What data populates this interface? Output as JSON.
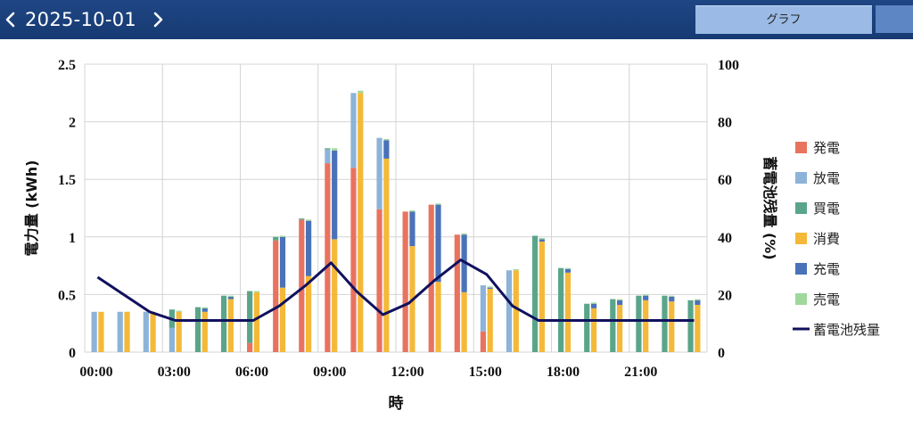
{
  "header": {
    "date": "2025-10-01",
    "tabs": [
      {
        "label": "グラフ",
        "active": true
      },
      {
        "label": "",
        "active": false
      }
    ]
  },
  "chart_data": {
    "type": "bar",
    "stacked_groups": true,
    "xlabel": "時",
    "ylabel_left": "電力量 (kWh)",
    "ylabel_right": "蓄電池残量 (%)",
    "ylim_left": [
      0,
      2.5
    ],
    "ylim_right": [
      0,
      100
    ],
    "y_ticks_left": [
      "0",
      "0.5",
      "1",
      "1.5",
      "2",
      "2.5"
    ],
    "y_ticks_right": [
      "0",
      "20",
      "40",
      "60",
      "80",
      "100"
    ],
    "x_ticks": [
      "00:00",
      "03:00",
      "06:00",
      "09:00",
      "12:00",
      "15:00",
      "18:00",
      "21:00"
    ],
    "hours": [
      0,
      1,
      2,
      3,
      4,
      5,
      6,
      7,
      8,
      9,
      10,
      11,
      12,
      13,
      14,
      15,
      16,
      17,
      18,
      19,
      20,
      21,
      22,
      23
    ],
    "grid": true,
    "legend_position": "right",
    "colors": {
      "発電": "#e8735f",
      "放電": "#8db3d8",
      "買電": "#5aa58a",
      "消費": "#f4b938",
      "充電": "#4a72b8",
      "売電": "#9fd89a",
      "蓄電池残量": "#10115e"
    },
    "series": [
      {
        "name": "発電",
        "values": [
          0,
          0,
          0,
          0,
          0,
          0,
          0.08,
          0.97,
          1.15,
          1.64,
          1.6,
          1.24,
          1.22,
          1.28,
          1.02,
          0.18,
          0,
          0,
          0,
          0,
          0,
          0,
          0,
          0
        ]
      },
      {
        "name": "放電",
        "values": [
          0.35,
          0.35,
          0.35,
          0.21,
          0,
          0,
          0,
          0,
          0,
          0.12,
          0.65,
          0.62,
          0,
          0,
          0,
          0.4,
          0.71,
          0,
          0,
          0,
          0,
          0,
          0,
          0
        ]
      },
      {
        "name": "買電",
        "values": [
          0,
          0,
          0,
          0.16,
          0.39,
          0.49,
          0.45,
          0.03,
          0.01,
          0.01,
          0,
          0,
          0,
          0,
          0,
          0,
          0,
          1.01,
          0.73,
          0.42,
          0.46,
          0.49,
          0.49,
          0.45
        ]
      },
      {
        "name": "消費",
        "values": [
          0.35,
          0.35,
          0.35,
          0.35,
          0.35,
          0.46,
          0.52,
          0.56,
          0.66,
          0.98,
          2.25,
          1.68,
          0.92,
          0.61,
          0.52,
          0.55,
          0.71,
          0.96,
          0.69,
          0.38,
          0.41,
          0.45,
          0.44,
          0.41
        ]
      },
      {
        "name": "充電",
        "values": [
          0,
          0,
          0,
          0,
          0.03,
          0.02,
          0,
          0.44,
          0.48,
          0.77,
          0,
          0.16,
          0.3,
          0.67,
          0.5,
          0.01,
          0,
          0.02,
          0.03,
          0.04,
          0.04,
          0.04,
          0.04,
          0.04
        ]
      },
      {
        "name": "売電",
        "values": [
          0,
          0,
          0,
          0.01,
          0.01,
          0.01,
          0.01,
          0.01,
          0.01,
          0.02,
          0.02,
          0.01,
          0.01,
          0.01,
          0.01,
          0.01,
          0.01,
          0.01,
          0.01,
          0.01,
          0.01,
          0.01,
          0.01,
          0.01
        ]
      }
    ],
    "line": {
      "name": "蓄電池残量",
      "values": [
        26,
        20,
        14,
        11,
        11,
        11,
        11,
        16,
        23,
        31,
        21,
        13,
        17,
        25,
        32,
        27,
        16,
        11,
        11,
        11,
        11,
        11,
        11,
        11
      ]
    }
  }
}
